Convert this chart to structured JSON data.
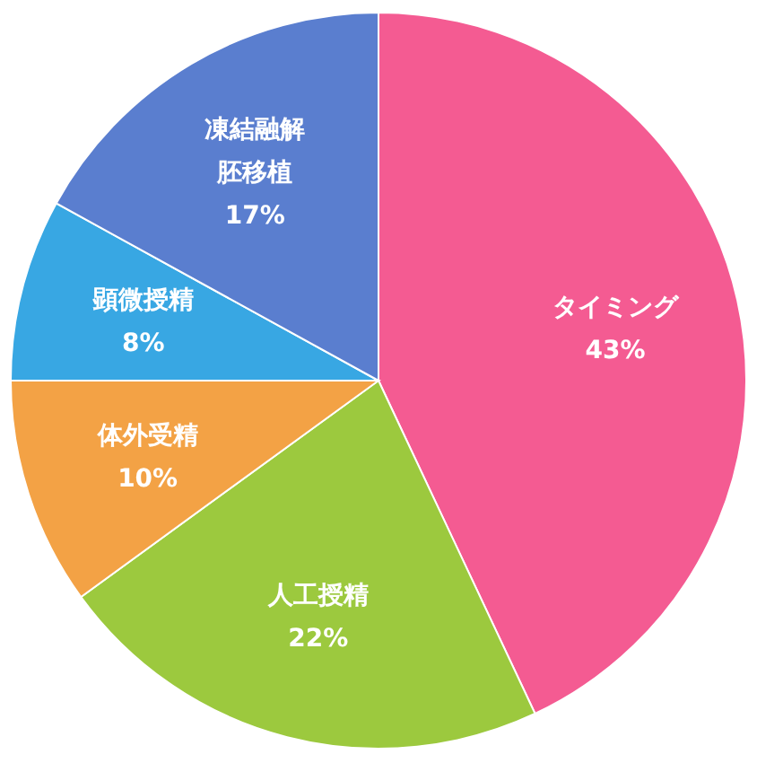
{
  "chart_data": {
    "type": "pie",
    "categories": [
      "タイミング",
      "人工授精",
      "体外受精",
      "顕微授精",
      "凍結融解胚移植"
    ],
    "values": [
      43,
      22,
      10,
      8,
      17
    ],
    "colors": [
      "#f45b92",
      "#9cc93e",
      "#f3a245",
      "#38a7e3",
      "#5a7ecf"
    ],
    "value_labels": [
      "43%",
      "22%",
      "10%",
      "8%",
      "17%"
    ]
  }
}
